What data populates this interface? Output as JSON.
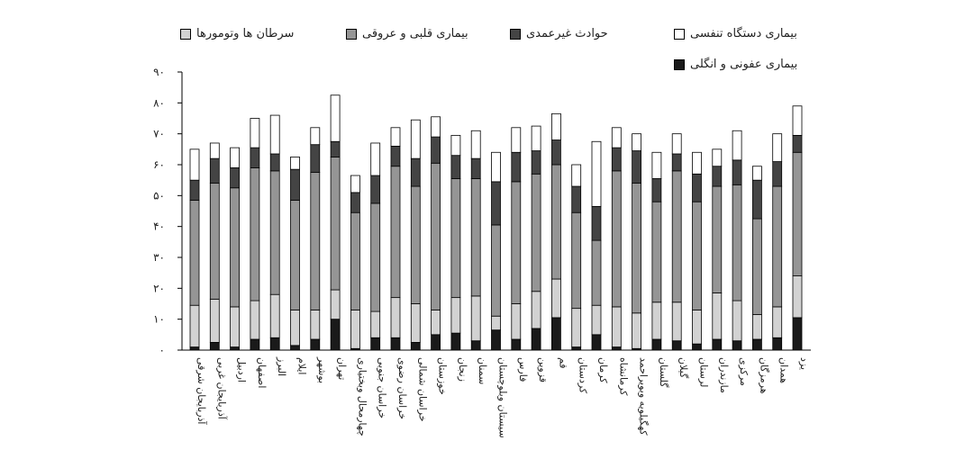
{
  "chart_data": {
    "type": "bar",
    "stacked": true,
    "ylim": [
      0,
      90
    ],
    "yticks": [
      "۰",
      "۱۰",
      "۲۰",
      "۳۰",
      "۴۰",
      "۵۰",
      "۶۰",
      "۷۰",
      "۸۰",
      "۹۰"
    ],
    "grid": false,
    "legend_position": "top",
    "categories": [
      "آذربایجان شرقی",
      "آذربایجان غربی",
      "اردبیل",
      "اصفهان",
      "البرز",
      "ایلام",
      "بوشهر",
      "تهران",
      "چهارمحال وبختیاری",
      "خراسان جنوبی",
      "خراسان رضوی",
      "خراسان شمالی",
      "خوزستان",
      "زنجان",
      "سمنان",
      "سیستان وبلوچستان",
      "فارس",
      "قزوین",
      "قم",
      "کردستان",
      "کرمان",
      "کرمانشاه",
      "کهگیلویه وبویراحمد",
      "گلستان",
      "گیلان",
      "لرستان",
      "مازندران",
      "مرکزی",
      "هرمزگان",
      "همدان",
      "یزد"
    ],
    "series": [
      {
        "name": "بیماری عفونی و انگلی",
        "color": "#1a1a1a",
        "values": [
          1,
          2.5,
          1,
          3.5,
          4,
          1.5,
          3.5,
          10,
          0.5,
          4,
          4,
          2.5,
          5,
          5.5,
          3,
          6.5,
          3.5,
          7,
          10.5,
          1,
          5,
          1,
          0.5,
          3.5,
          3,
          2,
          3.5,
          3,
          3.5,
          4,
          10.5
        ]
      },
      {
        "name": "سرطان ها وتومورها",
        "color": "#d2d2d2",
        "values": [
          13.5,
          14,
          13,
          12.5,
          14,
          11.5,
          9.5,
          9.5,
          12.5,
          8.5,
          13,
          12.5,
          8,
          11.5,
          14.5,
          4.5,
          11.5,
          12,
          12.5,
          12.5,
          9.5,
          13,
          11.5,
          12,
          12.5,
          11,
          15,
          13,
          8,
          10,
          13.5
        ]
      },
      {
        "name": "بیماری قلبی و عروقی",
        "color": "#959595",
        "values": [
          34,
          37.5,
          38.5,
          43,
          40,
          35.5,
          44.5,
          43,
          31.5,
          35,
          42.5,
          38,
          47.5,
          38.5,
          38,
          29.5,
          39.5,
          38,
          37,
          31,
          21,
          44,
          42,
          32.5,
          42.5,
          35,
          34.5,
          37.5,
          31,
          39,
          40
        ]
      },
      {
        "name": "حوادث غیرعمدی",
        "color": "#444444",
        "values": [
          6.5,
          8,
          6.5,
          6.5,
          5.5,
          10,
          9,
          5,
          6.5,
          9,
          6.5,
          9,
          8.5,
          7.5,
          6.5,
          14,
          9.5,
          7.5,
          8,
          8.5,
          11,
          7.5,
          10.5,
          7.5,
          5.5,
          9,
          6.5,
          8,
          12.5,
          8,
          5.5
        ]
      },
      {
        "name": "بیماری دستگاه تنفسی",
        "color": "#ffffff",
        "values": [
          10,
          5,
          6.5,
          9.5,
          12.5,
          4,
          5.5,
          15,
          5.5,
          10.5,
          6,
          12.5,
          6.5,
          6.5,
          9,
          9.5,
          8,
          8,
          8.5,
          7,
          21,
          6.5,
          5.5,
          8.5,
          6.5,
          7,
          5.5,
          9.5,
          4.5,
          9,
          9.5
        ]
      }
    ]
  },
  "legend": [
    {
      "label": "سرطان ها وتومورها",
      "color": "#d2d2d2"
    },
    {
      "label": "بیماری قلبی و عروقی",
      "color": "#959595"
    },
    {
      "label": "حوادث غیرعمدی",
      "color": "#444444"
    },
    {
      "label": "بیماری دستگاه تنفسی",
      "color": "#ffffff"
    },
    {
      "label": "بیماری عفونی و انگلی",
      "color": "#1a1a1a"
    }
  ]
}
